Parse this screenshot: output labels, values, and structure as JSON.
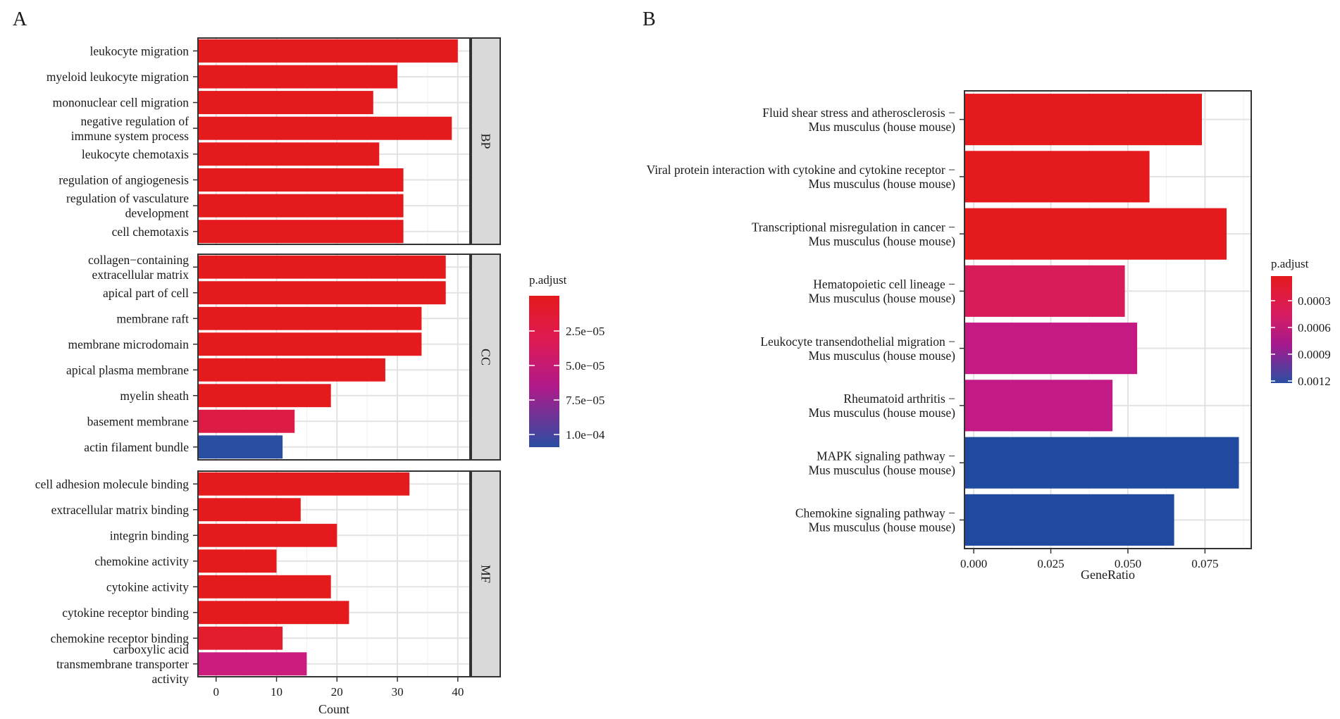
{
  "panels": {
    "a_label": "A",
    "b_label": "B"
  },
  "chart_data": [
    {
      "type": "bar",
      "orientation": "horizontal",
      "panel": "A",
      "xlabel": "Count",
      "xlim": [
        -3,
        42
      ],
      "xticks": [
        0,
        10,
        20,
        30,
        40
      ],
      "grid": true,
      "facets": [
        {
          "name": "BP",
          "categories": [
            [
              "leukocyte migration"
            ],
            [
              "myeloid leukocyte migration"
            ],
            [
              "mononuclear cell migration"
            ],
            [
              "negative regulation of",
              "immune system process"
            ],
            [
              "leukocyte chemotaxis"
            ],
            [
              "regulation of angiogenesis"
            ],
            [
              "regulation of vasculature",
              "development"
            ],
            [
              "cell chemotaxis"
            ]
          ],
          "values": [
            40,
            30,
            26,
            39,
            27,
            31,
            31,
            31
          ],
          "colors": [
            "#e41a1c",
            "#e41a1c",
            "#e41a1c",
            "#e41a1c",
            "#e41a1c",
            "#e41a1c",
            "#e41a1c",
            "#e41a1c"
          ]
        },
        {
          "name": "CC",
          "categories": [
            [
              "collagen−containing",
              "extracellular matrix"
            ],
            [
              "apical part of cell"
            ],
            [
              "membrane raft"
            ],
            [
              "membrane microdomain"
            ],
            [
              "apical plasma membrane"
            ],
            [
              "myelin sheath"
            ],
            [
              "basement membrane"
            ],
            [
              "actin filament bundle"
            ]
          ],
          "values": [
            38,
            38,
            34,
            34,
            28,
            19,
            13,
            11
          ],
          "colors": [
            "#e41a1c",
            "#e41a1c",
            "#e41a1c",
            "#e41a1c",
            "#e41a1c",
            "#e41a1c",
            "#dc1c44",
            "#2a4ea2"
          ]
        },
        {
          "name": "MF",
          "categories": [
            [
              "cell adhesion molecule binding"
            ],
            [
              "extracellular matrix binding"
            ],
            [
              "integrin binding"
            ],
            [
              "chemokine activity"
            ],
            [
              "cytokine activity"
            ],
            [
              "cytokine receptor binding"
            ],
            [
              "chemokine receptor binding"
            ],
            [
              "carboxylic acid",
              "transmembrane transporter",
              "activity"
            ]
          ],
          "values": [
            32,
            14,
            20,
            10,
            19,
            22,
            11,
            15
          ],
          "colors": [
            "#e41a1c",
            "#e41a1c",
            "#e41a1c",
            "#e41a1c",
            "#e41a1c",
            "#e41a1c",
            "#e31c2e",
            "#cc1d7e"
          ]
        }
      ],
      "legend": {
        "title": "p.adjust",
        "ticks": [
          "2.5e−05",
          "5.0e−05",
          "7.5e−05",
          "1.0e−04"
        ],
        "position": "right"
      }
    },
    {
      "type": "bar",
      "orientation": "horizontal",
      "panel": "B",
      "xlabel": "GeneRatio",
      "xlim": [
        -0.003,
        0.09
      ],
      "xticks": [
        0,
        0.025,
        0.05,
        0.075
      ],
      "xtick_labels": [
        "0.000",
        "0.025",
        "0.050",
        "0.075"
      ],
      "grid": true,
      "categories": [
        [
          "Fluid shear stress and atherosclerosis −",
          "Mus musculus (house mouse)"
        ],
        [
          "Viral protein interaction with cytokine and cytokine receptor −",
          "Mus musculus (house mouse)"
        ],
        [
          "Transcriptional misregulation in cancer −",
          "Mus musculus (house mouse)"
        ],
        [
          "Hematopoietic cell lineage −",
          "Mus musculus (house mouse)"
        ],
        [
          "Leukocyte transendothelial migration −",
          "Mus musculus (house mouse)"
        ],
        [
          "Rheumatoid arthritis −",
          "Mus musculus (house mouse)"
        ],
        [
          "MAPK signaling pathway −",
          "Mus musculus (house mouse)"
        ],
        [
          "Chemokine signaling pathway −",
          "Mus musculus (house mouse)"
        ]
      ],
      "values": [
        0.074,
        0.057,
        0.082,
        0.049,
        0.053,
        0.045,
        0.086,
        0.065
      ],
      "colors": [
        "#e41a1c",
        "#e41a1c",
        "#e41a1c",
        "#d81c5a",
        "#c51a84",
        "#c31a86",
        "#1f4a9f",
        "#1f4a9f"
      ],
      "legend": {
        "title": "p.adjust",
        "ticks": [
          "0.0003",
          "0.0006",
          "0.0009",
          "0.0012"
        ],
        "position": "right"
      }
    }
  ]
}
